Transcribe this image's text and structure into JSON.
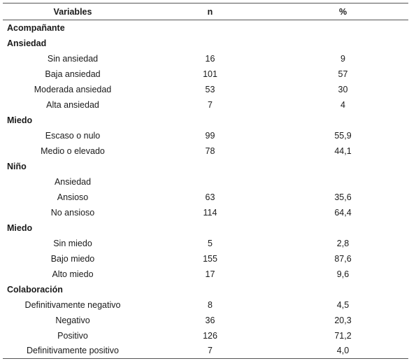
{
  "header": {
    "variables": "Variables",
    "n": "n",
    "percent": "%"
  },
  "rows": [
    {
      "type": "section",
      "label": "Acompañante"
    },
    {
      "type": "section",
      "label": "Ansiedad"
    },
    {
      "type": "item",
      "label": "Sin ansiedad",
      "n": "16",
      "pct": "9"
    },
    {
      "type": "item",
      "label": "Baja ansiedad",
      "n": "101",
      "pct": "57"
    },
    {
      "type": "item",
      "label": "Moderada ansiedad",
      "n": "53",
      "pct": "30"
    },
    {
      "type": "item",
      "label": "Alta ansiedad",
      "n": "7",
      "pct": "4"
    },
    {
      "type": "section",
      "label": "Miedo"
    },
    {
      "type": "item",
      "label": "Escaso o nulo",
      "n": "99",
      "pct": "55,9"
    },
    {
      "type": "item",
      "label": "Medio o elevado",
      "n": "78",
      "pct": "44,1"
    },
    {
      "type": "section",
      "label": "Niño"
    },
    {
      "type": "item",
      "label": "Ansiedad",
      "n": "",
      "pct": ""
    },
    {
      "type": "item",
      "label": "Ansioso",
      "n": "63",
      "pct": "35,6"
    },
    {
      "type": "item",
      "label": "No ansioso",
      "n": "114",
      "pct": "64,4"
    },
    {
      "type": "section",
      "label": "Miedo"
    },
    {
      "type": "item",
      "label": "Sin miedo",
      "n": "5",
      "pct": "2,8"
    },
    {
      "type": "item",
      "label": "Bajo miedo",
      "n": "155",
      "pct": "87,6"
    },
    {
      "type": "item",
      "label": "Alto miedo",
      "n": "17",
      "pct": "9,6"
    },
    {
      "type": "section",
      "label": "Colaboración"
    },
    {
      "type": "item",
      "label": "Definitivamente negativo",
      "n": "8",
      "pct": "4,5"
    },
    {
      "type": "item",
      "label": "Negativo",
      "n": "36",
      "pct": "20,3"
    },
    {
      "type": "item",
      "label": "Positivo",
      "n": "126",
      "pct": "71,2"
    },
    {
      "type": "item",
      "label": "Definitivamente positivo",
      "n": "7",
      "pct": "4,0"
    }
  ]
}
